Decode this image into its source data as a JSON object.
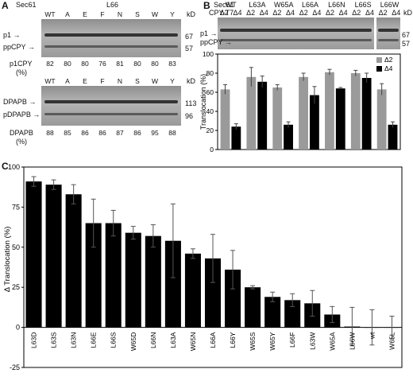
{
  "panel_a": {
    "letter": "A",
    "top_blot": {
      "header_left": "Sec61",
      "header_center": "L66",
      "lanes": [
        "WT",
        "A",
        "E",
        "F",
        "N",
        "S",
        "W",
        "Y"
      ],
      "kd_unit": "kD",
      "band_labels": [
        "p1",
        "ppCPY"
      ],
      "markers": [
        "67",
        "57"
      ],
      "quant_label": "p1CPY",
      "quant_unit": "(%)",
      "quant_values": [
        "82",
        "80",
        "80",
        "76",
        "81",
        "80",
        "80",
        "83"
      ]
    },
    "bottom_blot": {
      "lanes": [
        "WT",
        "A",
        "E",
        "F",
        "N",
        "S",
        "W",
        "Y"
      ],
      "kd_unit": "kD",
      "band_labels": [
        "DPAPB",
        "pDPAPB"
      ],
      "markers": [
        "113",
        "96"
      ],
      "quant_label": "DPAPB",
      "quant_unit": "(%)",
      "quant_values": [
        "88",
        "85",
        "86",
        "86",
        "87",
        "86",
        "95",
        "88"
      ]
    }
  },
  "panel_b": {
    "letter": "B",
    "header_row1": "Sec61",
    "header_row2": "CPY-T7",
    "groups": [
      "WT",
      "L63A",
      "W65A",
      "L66A",
      "L66N",
      "L66S",
      "L66W"
    ],
    "sublabels": [
      "Δ2",
      "Δ4"
    ],
    "kd_unit": "kD",
    "band_labels": [
      "p1",
      "ppCPY"
    ],
    "markers": [
      "67",
      "57"
    ]
  },
  "panel_c": {
    "letter": "C"
  },
  "colors": {
    "delta2": "#9a9a9a",
    "delta4": "#000000",
    "bar_c": "#000000"
  },
  "chart_data": [
    {
      "type": "bar",
      "panel": "B",
      "categories": [
        "WT",
        "L63A",
        "W65A",
        "L66A",
        "L66N",
        "L66S",
        "L66W"
      ],
      "series": [
        {
          "name": "Δ2",
          "values": [
            63,
            76,
            65,
            76,
            81,
            80,
            63
          ],
          "errors": [
            5,
            10,
            3,
            4,
            3,
            3,
            6
          ]
        },
        {
          "name": "Δ4",
          "values": [
            24,
            71,
            26,
            57,
            64,
            75,
            26
          ],
          "errors": [
            3,
            6,
            3,
            9,
            1,
            5,
            3
          ]
        }
      ],
      "ylabel": "Translocation (%)",
      "ylim": [
        0,
        100
      ],
      "yticks": [
        "0",
        "20",
        "40",
        "60",
        "80",
        "100"
      ],
      "legend_placement": "top-right",
      "grid": false
    },
    {
      "type": "bar",
      "panel": "C",
      "categories": [
        "L63D",
        "L63S",
        "L63N",
        "L66E",
        "L66S",
        "W65D",
        "L66N",
        "L63A",
        "W65N",
        "L66A",
        "L66Y",
        "W65S",
        "W65Y",
        "L66F",
        "L63W",
        "W65A",
        "L66W",
        "wt",
        "W65L"
      ],
      "values": [
        91,
        89,
        83,
        65,
        65,
        59,
        57,
        54,
        46,
        43,
        36,
        25,
        19,
        17,
        15,
        8,
        0.5,
        0,
        0
      ],
      "errors": [
        3,
        3,
        6,
        15,
        8,
        4,
        7,
        23,
        3,
        15,
        12,
        1,
        3,
        4,
        8,
        5,
        12,
        11,
        7
      ],
      "ylabel": "Δ Translocation (%)",
      "ylim": [
        -25,
        100
      ],
      "yticks": [
        "-25",
        "0",
        "25",
        "50",
        "75",
        "100"
      ],
      "grid": false
    }
  ]
}
